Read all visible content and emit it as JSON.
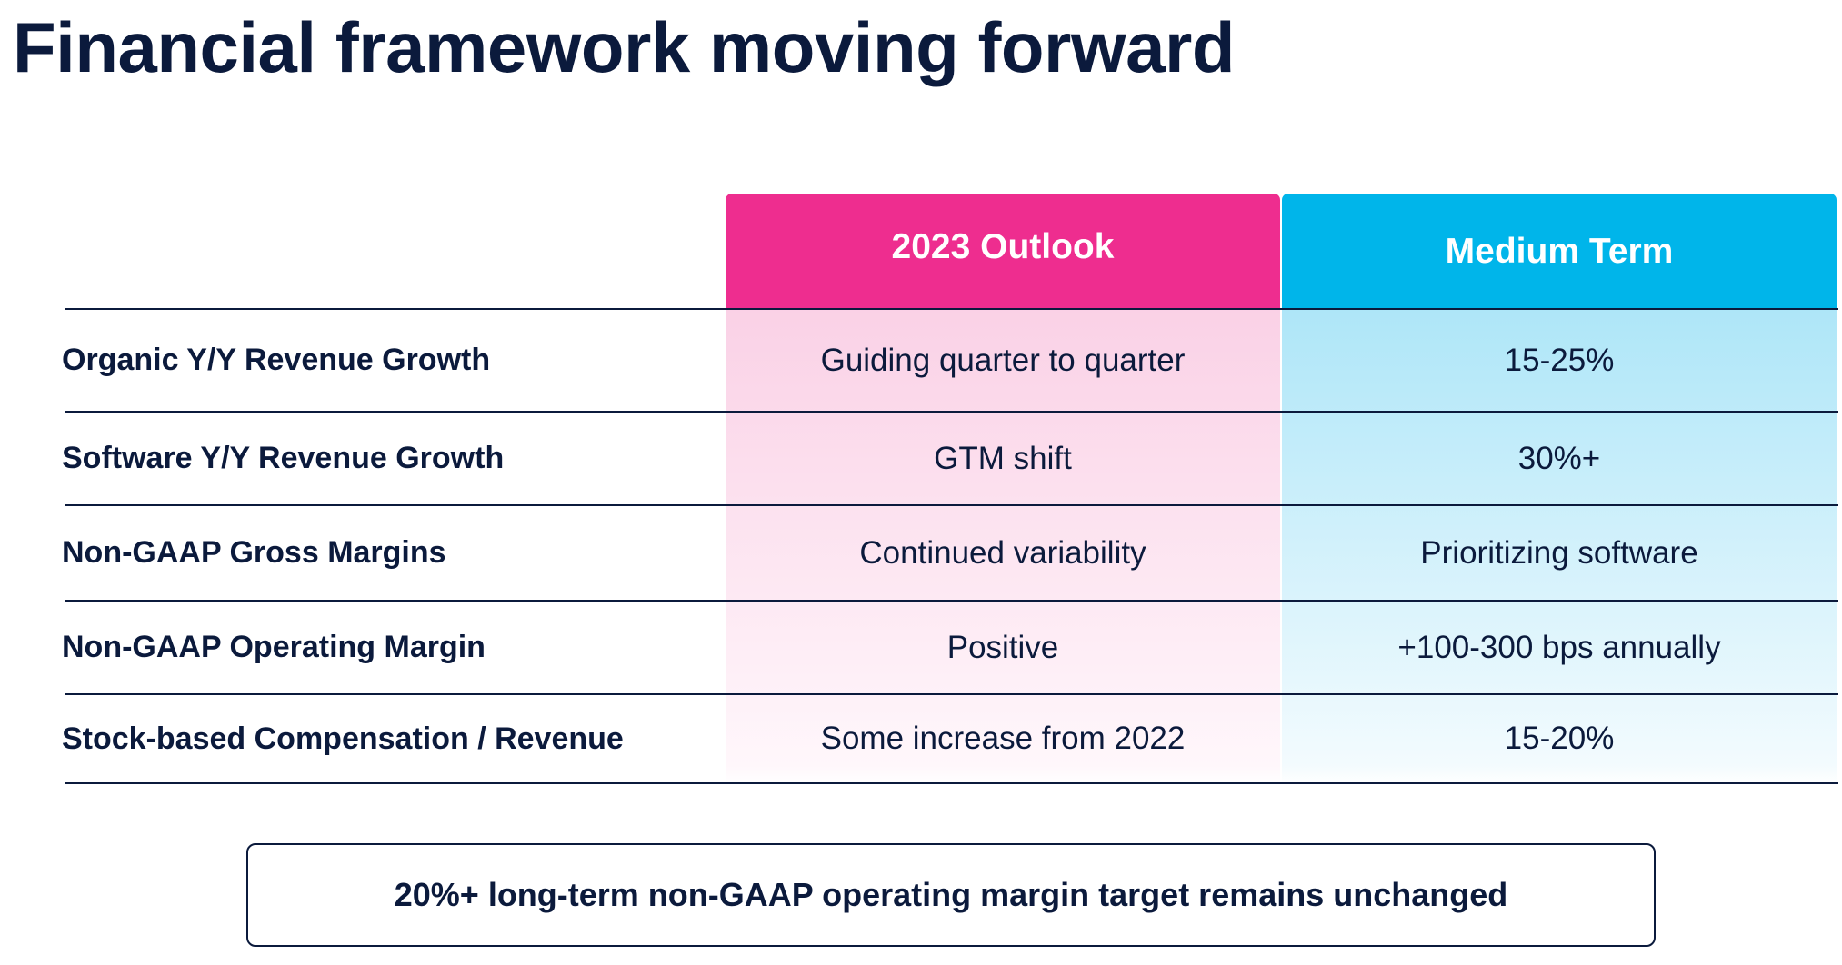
{
  "title": "Financial framework moving forward",
  "colors": {
    "title": "#0b1a3c",
    "outlook_header": "#ee2d8f",
    "medium_header": "#00b5ea",
    "outlook_body": "#fad1e6",
    "medium_body": "#aee6f8"
  },
  "table": {
    "columns": [
      "2023 Outlook",
      "Medium Term"
    ],
    "rows": [
      {
        "label": "Organic Y/Y Revenue Growth",
        "outlook": "Guiding quarter to quarter",
        "medium": "15-25%"
      },
      {
        "label": "Software Y/Y Revenue Growth",
        "outlook": "GTM shift",
        "medium": "30%+"
      },
      {
        "label": "Non-GAAP Gross Margins",
        "outlook": "Continued variability",
        "medium": "Prioritizing software"
      },
      {
        "label": "Non-GAAP Operating Margin",
        "outlook": "Positive",
        "medium": "+100-300 bps annually"
      },
      {
        "label": "Stock-based Compensation / Revenue",
        "outlook": "Some increase from 2022",
        "medium": "15-20%"
      }
    ]
  },
  "footer": {
    "text": "20%+ long-term non-GAAP operating margin target remains unchanged"
  }
}
